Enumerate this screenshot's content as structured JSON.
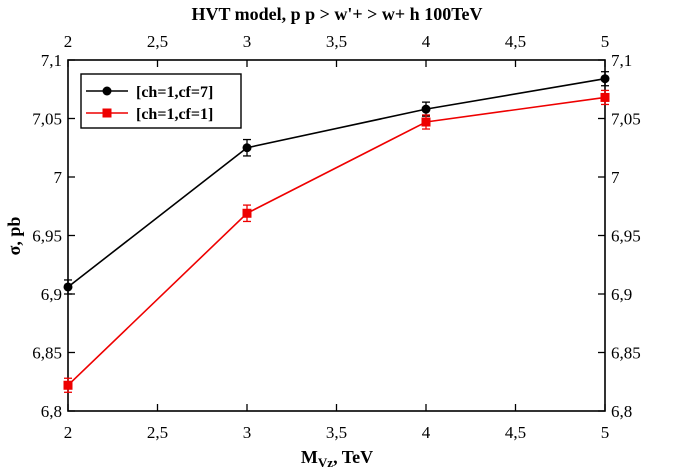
{
  "chart_data": {
    "type": "line",
    "title": "HVT model, p p > w'+ > w+ h 100TeV",
    "xlabel": "M_Vz, TeV",
    "ylabel": "σ, pb",
    "xlim": [
      2,
      5
    ],
    "ylim": [
      6.8,
      7.1
    ],
    "x_ticks": [
      2,
      2.5,
      3,
      3.5,
      4,
      4.5,
      5
    ],
    "x_tick_labels": [
      "2",
      "2,5",
      "3",
      "3,5",
      "4",
      "4,5",
      "5"
    ],
    "y_ticks": [
      6.8,
      6.85,
      6.9,
      6.95,
      7.0,
      7.05,
      7.1
    ],
    "y_tick_labels": [
      "6,8",
      "6,85",
      "6,9",
      "6,95",
      "7",
      "7,05",
      "7,1"
    ],
    "x": [
      2,
      3,
      4,
      5
    ],
    "legend_position": "top-left",
    "grid": false,
    "series": [
      {
        "name": "[ch=1,cf=7]",
        "color": "#000000",
        "marker": "circle",
        "values": [
          6.906,
          7.025,
          7.058,
          7.084
        ],
        "errors": [
          0.006,
          0.007,
          0.006,
          0.006
        ]
      },
      {
        "name": "[ch=1,cf=1]",
        "color": "#ee0000",
        "marker": "square",
        "values": [
          6.822,
          6.969,
          7.047,
          7.068
        ],
        "errors": [
          0.006,
          0.007,
          0.006,
          0.006
        ]
      }
    ]
  }
}
